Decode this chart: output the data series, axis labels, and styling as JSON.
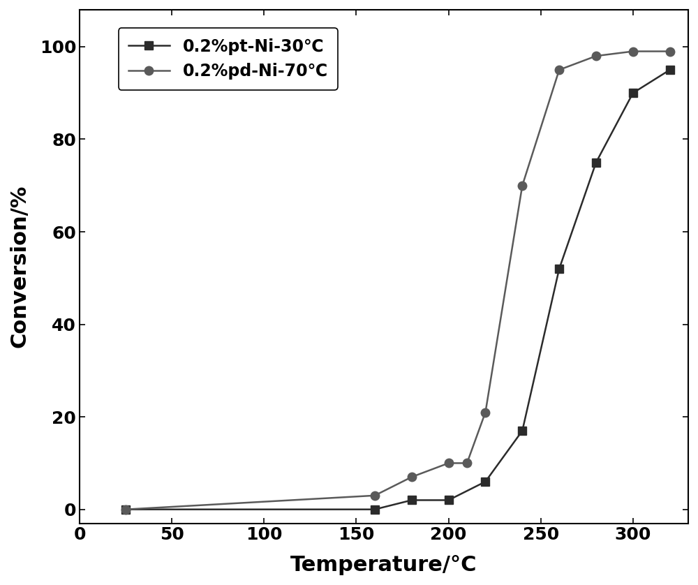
{
  "series1_label": "0.2%pt-Ni-30℃",
  "series2_label": "0.2%pd-Ni-70℃",
  "series1_x": [
    25,
    160,
    180,
    200,
    220,
    240,
    260,
    280,
    300,
    320
  ],
  "series1_y": [
    0,
    0,
    2,
    2,
    6,
    17,
    52,
    75,
    90,
    95
  ],
  "series2_x": [
    25,
    160,
    180,
    200,
    210,
    220,
    240,
    260,
    280,
    300,
    320
  ],
  "series2_y": [
    0,
    3,
    7,
    10,
    10,
    21,
    70,
    95,
    98,
    99,
    99
  ],
  "series1_color": "#2b2b2b",
  "series2_color": "#5a5a5a",
  "marker1": "s",
  "marker2": "o",
  "markersize": 9,
  "linewidth": 1.8,
  "xlabel": "Temperature/°C",
  "ylabel": "Conversion/%",
  "xlim": [
    0,
    330
  ],
  "ylim": [
    -3,
    108
  ],
  "xticks": [
    0,
    50,
    100,
    150,
    200,
    250,
    300
  ],
  "yticks": [
    0,
    20,
    40,
    60,
    80,
    100
  ],
  "xlabel_fontsize": 22,
  "ylabel_fontsize": 22,
  "tick_fontsize": 18,
  "legend_fontsize": 17,
  "background_color": "#ffffff",
  "grid": false,
  "spine_linewidth": 1.5
}
